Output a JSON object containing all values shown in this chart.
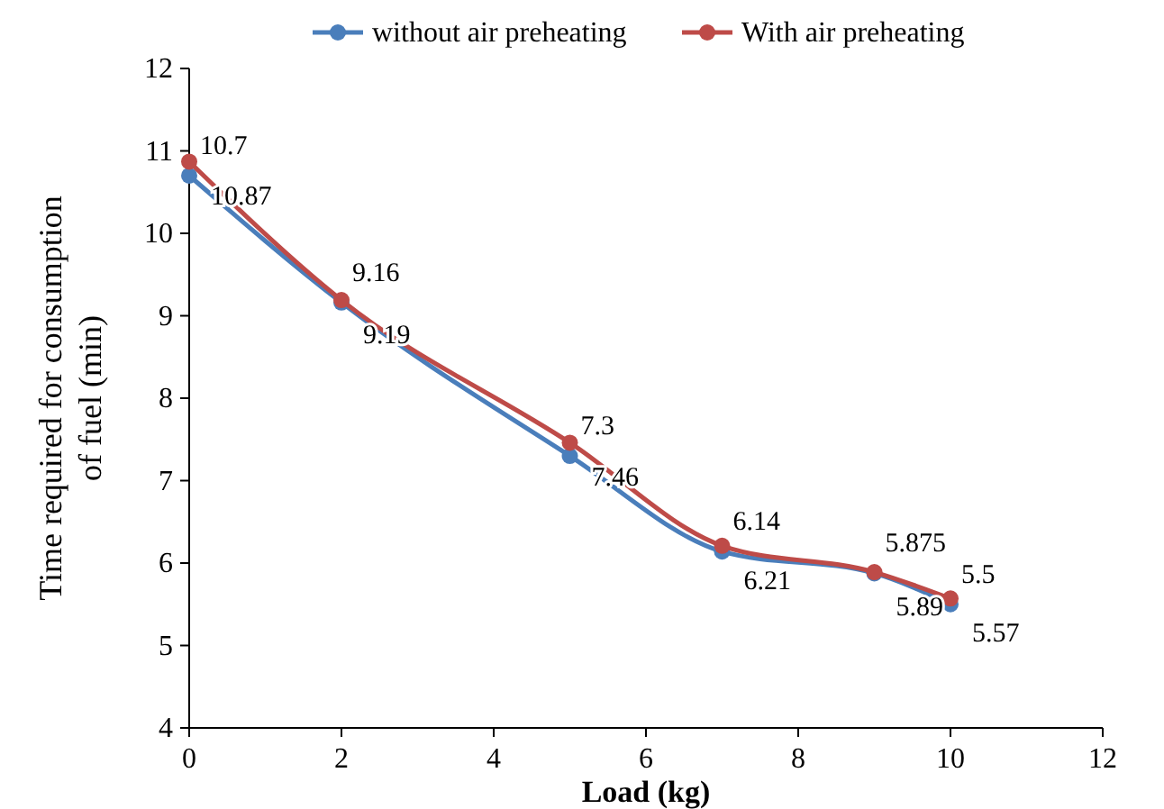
{
  "chart_data": {
    "type": "line",
    "xlabel": "Load (kg)",
    "ylabel": "Time required for consumption of fuel (min)",
    "x": [
      0,
      2,
      5,
      7,
      9,
      10
    ],
    "series": [
      {
        "name": "without air preheating",
        "color": "#4a7ebb",
        "values": [
          10.7,
          9.16,
          7.3,
          6.14,
          5.875,
          5.5
        ]
      },
      {
        "name": "With air preheating",
        "color": "#be4b48",
        "values": [
          10.87,
          9.19,
          7.46,
          6.21,
          5.89,
          5.57
        ]
      }
    ],
    "xlim": [
      0,
      12
    ],
    "xticks": [
      0,
      2,
      4,
      6,
      8,
      10,
      12
    ],
    "ylim": [
      4,
      12
    ],
    "yticks": [
      4,
      5,
      6,
      7,
      8,
      9,
      10,
      11,
      12
    ],
    "grid": false,
    "legend": "top",
    "marker": "circle",
    "line_style": "solid",
    "data_labels": true
  }
}
